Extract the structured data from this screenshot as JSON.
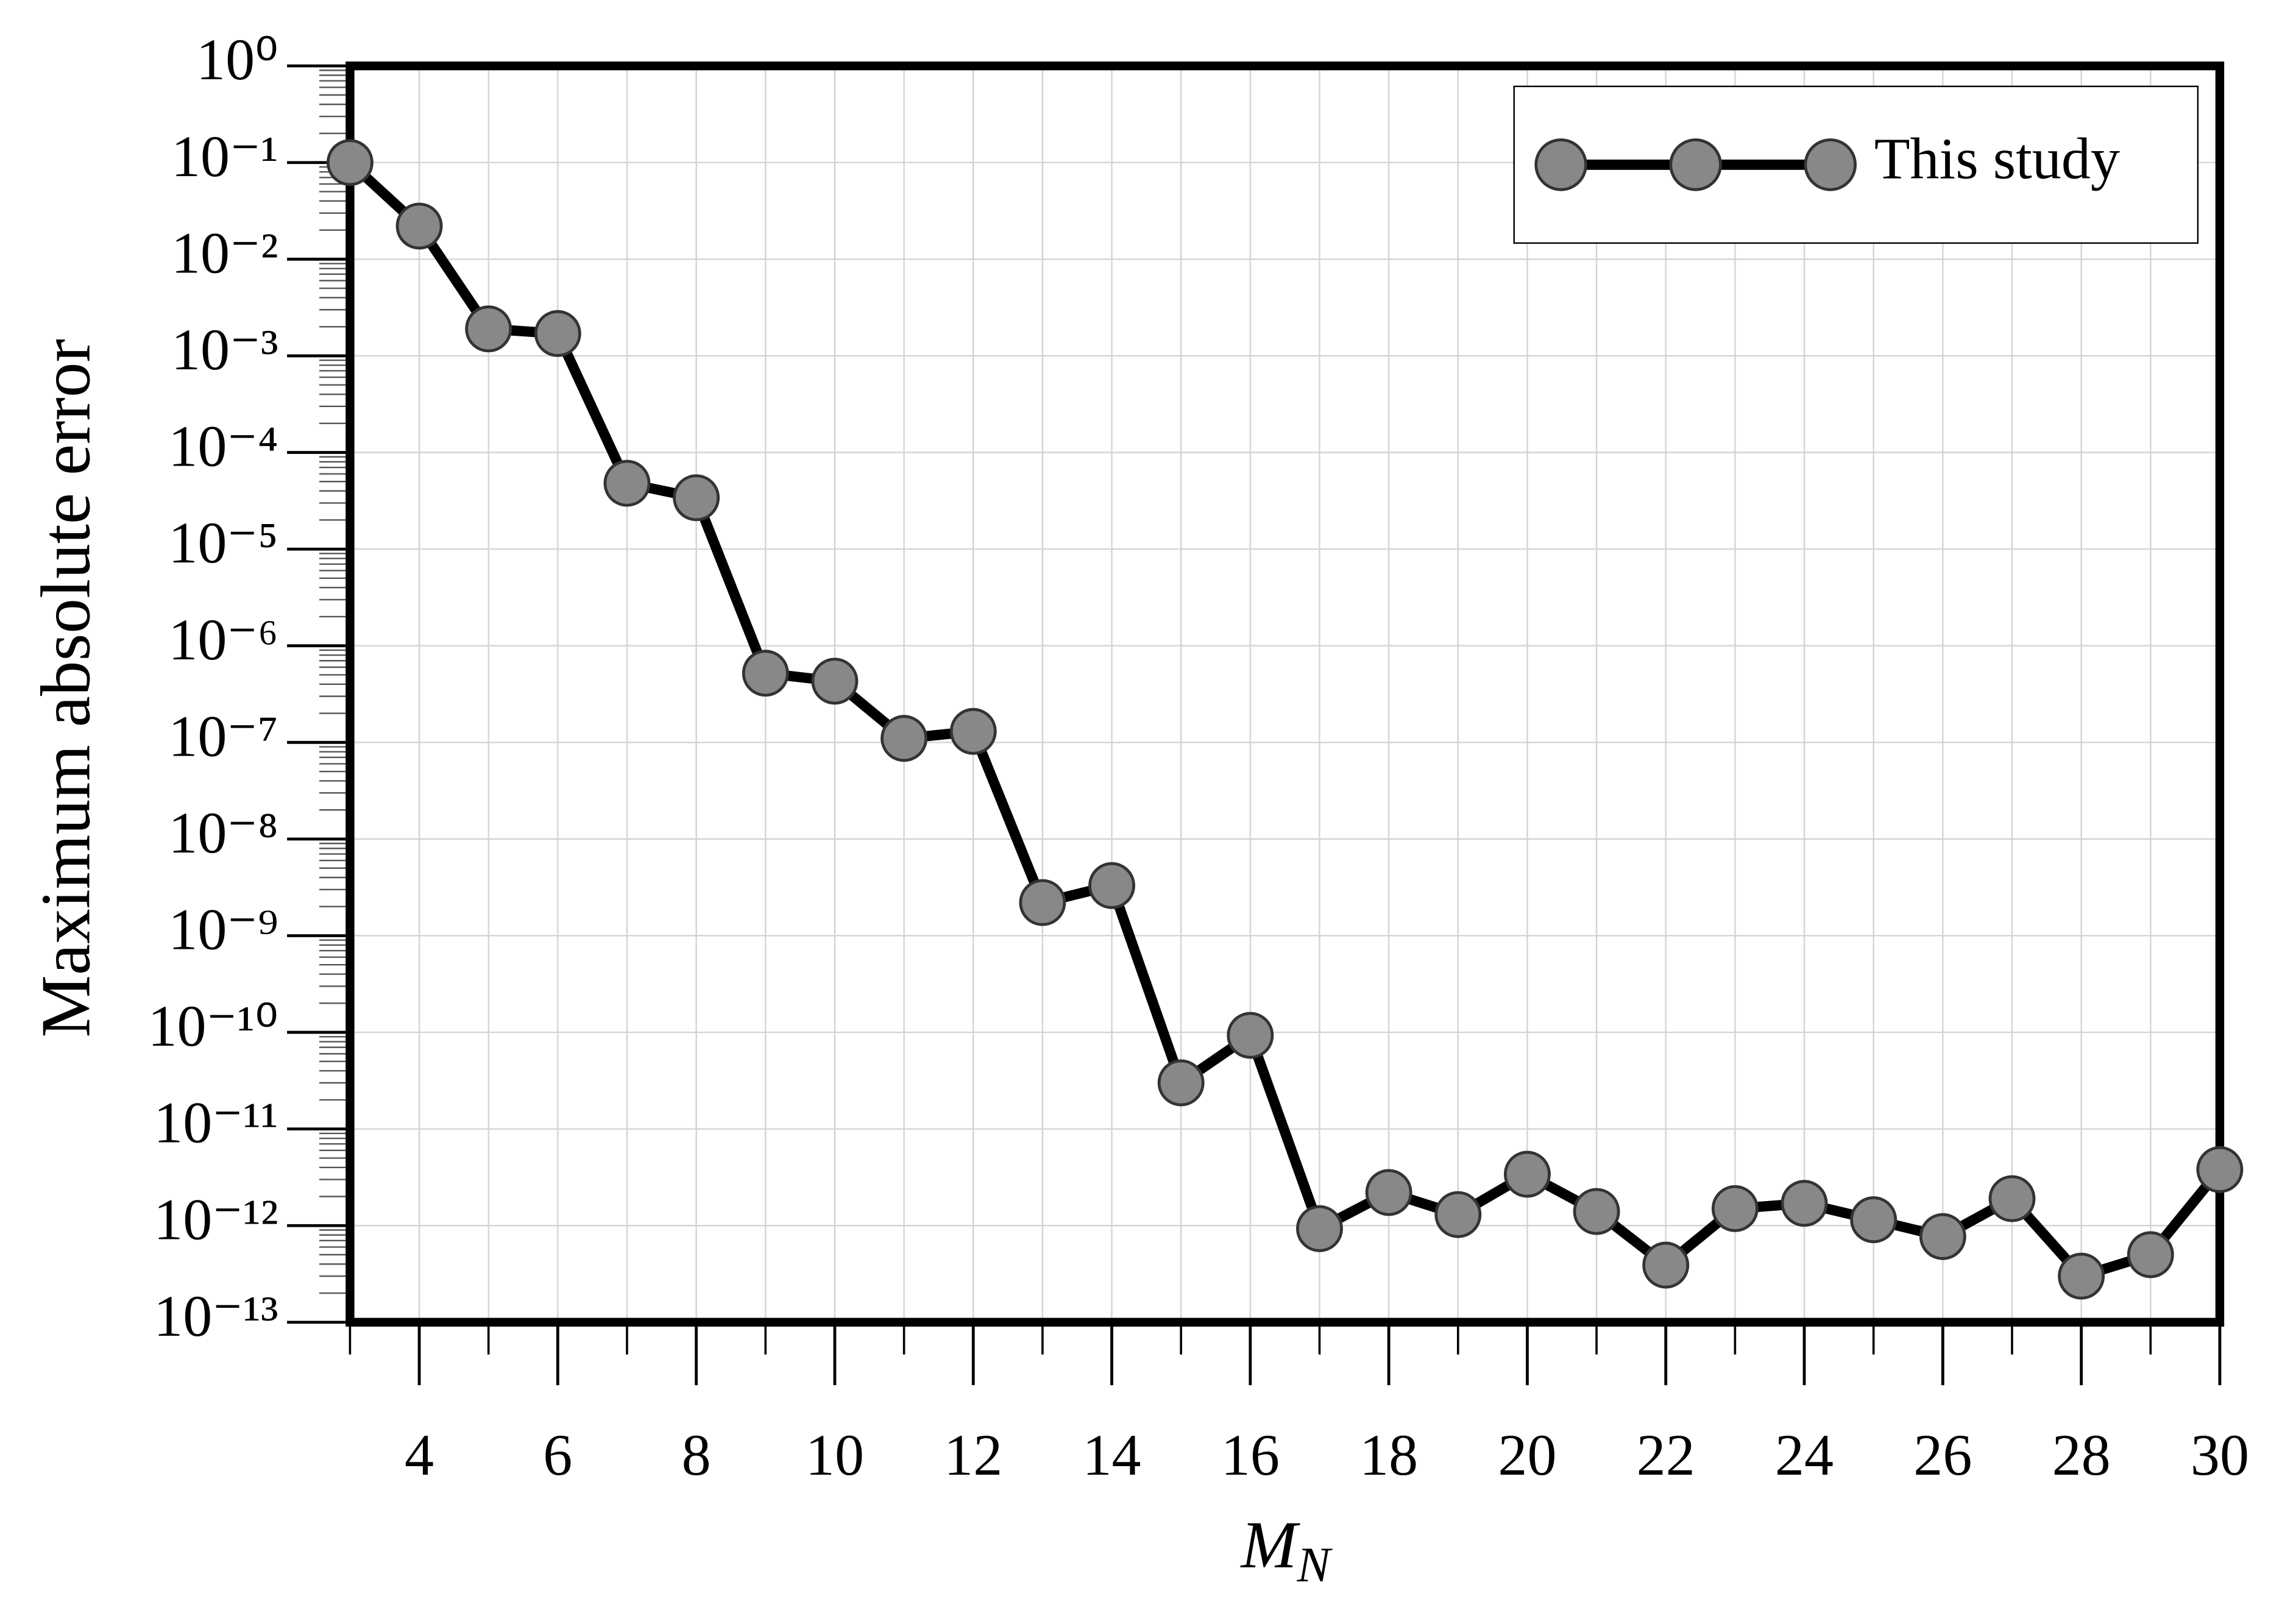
{
  "chart_data": {
    "type": "line",
    "xlabel": {
      "text": "M",
      "subscript": "N"
    },
    "ylabel": "Maximum absolute error",
    "x": [
      3,
      4,
      5,
      6,
      7,
      8,
      9,
      10,
      11,
      12,
      13,
      14,
      15,
      16,
      17,
      18,
      19,
      20,
      21,
      22,
      23,
      24,
      25,
      26,
      27,
      28,
      29,
      30
    ],
    "series": [
      {
        "name": "This study",
        "color": "#000000",
        "marker_color": "#888888",
        "values": [
          0.1,
          0.022,
          0.0019,
          0.0017,
          4.8e-05,
          3.4e-05,
          5.2e-07,
          4.3e-07,
          1.1e-07,
          1.3e-07,
          2.2e-09,
          3.3e-09,
          3e-11,
          9.3e-11,
          9.3e-13,
          2.2e-12,
          1.3e-12,
          3.4e-12,
          1.4e-12,
          3.9e-13,
          1.5e-12,
          1.7e-12,
          1.15e-12,
          7.7e-13,
          1.9e-12,
          3e-13,
          5e-13,
          3.8e-12
        ]
      }
    ],
    "xlim": [
      3,
      30
    ],
    "xticks": [
      4,
      6,
      8,
      10,
      12,
      14,
      16,
      18,
      20,
      22,
      24,
      26,
      28,
      30
    ],
    "xminor_ticks": [
      3,
      5,
      7,
      9,
      11,
      13,
      15,
      17,
      19,
      21,
      23,
      25,
      27,
      29
    ],
    "ylim": [
      1e-13,
      1
    ],
    "yscale": "log",
    "yticks": [
      {
        "value": 1e-13,
        "label": "10⁻¹³"
      },
      {
        "value": 1e-12,
        "label": "10⁻¹²"
      },
      {
        "value": 1e-11,
        "label": "10⁻¹¹"
      },
      {
        "value": 1e-10,
        "label": "10⁻¹⁰"
      },
      {
        "value": 1e-09,
        "label": "10⁻⁹"
      },
      {
        "value": 1e-08,
        "label": "10⁻⁸"
      },
      {
        "value": 1e-07,
        "label": "10⁻⁷"
      },
      {
        "value": 1e-06,
        "label": "10⁻⁶"
      },
      {
        "value": 1e-05,
        "label": "10⁻⁵"
      },
      {
        "value": 0.0001,
        "label": "10⁻⁴"
      },
      {
        "value": 0.001,
        "label": "10⁻³"
      },
      {
        "value": 0.01,
        "label": "10⁻²"
      },
      {
        "value": 0.1,
        "label": "10⁻¹"
      },
      {
        "value": 1,
        "label": "10⁰"
      }
    ],
    "grid": true,
    "legend": "upper right"
  }
}
